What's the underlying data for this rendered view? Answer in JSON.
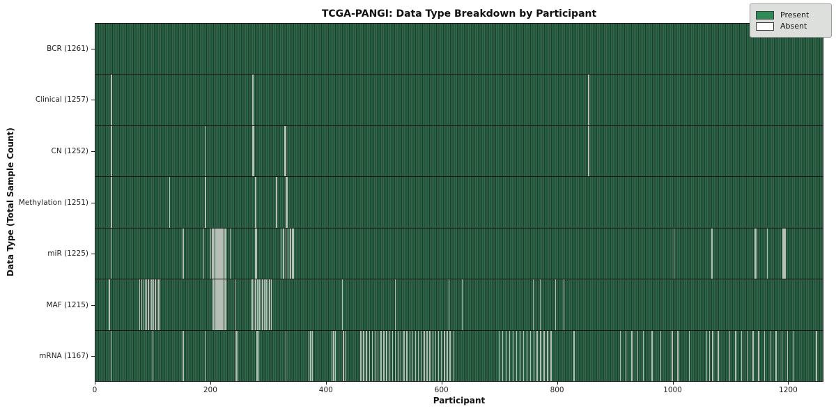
{
  "title": "TCGA-PANGI: Data Type Breakdown by Participant",
  "axes": {
    "xlabel": "Participant",
    "ylabel": "Data Type (Total Sample Count)"
  },
  "legend": {
    "present_label": "Present",
    "absent_label": "Absent"
  },
  "colors": {
    "present_fill": "#2e6b4d",
    "cell_edge": "#1f3c2b",
    "absent_line": "#b5bfb5",
    "legend_present": "#2e8b57",
    "legend_absent": "#ffffff"
  },
  "chart_data": {
    "type": "heatmap",
    "title": "TCGA-PANGI: Data Type Breakdown by Participant",
    "xlabel": "Participant",
    "ylabel": "Data Type (Total Sample Count)",
    "x_range": [
      0,
      1261
    ],
    "x_ticks": [
      0,
      200,
      400,
      600,
      800,
      1000,
      1200
    ],
    "total_participants": 1261,
    "legend_position": "upper right",
    "rows": [
      {
        "label": "BCR (1261)",
        "data_type": "BCR",
        "present_count": 1261,
        "absent_participants": []
      },
      {
        "label": "Clinical (1257)",
        "data_type": "Clinical",
        "present_count": 1257,
        "absent_participants": [
          27,
          28,
          273,
          855
        ]
      },
      {
        "label": "CN (1252)",
        "data_type": "CN",
        "present_count": 1252,
        "absent_participants": [
          27,
          28,
          190,
          273,
          274,
          328,
          329,
          330,
          855
        ]
      },
      {
        "label": "Methylation (1251)",
        "data_type": "Methylation",
        "present_count": 1251,
        "absent_participants": [
          27,
          28,
          129,
          190,
          191,
          277,
          278,
          314,
          331,
          332
        ]
      },
      {
        "label": "miR (1225)",
        "data_type": "miR",
        "present_count": 1225,
        "absent_participants": [
          27,
          152,
          188,
          200,
          202,
          204,
          206,
          208,
          210,
          212,
          214,
          216,
          218,
          220,
          222,
          224,
          226,
          234,
          278,
          279,
          322,
          326,
          330,
          334,
          338,
          342,
          344,
          1003,
          1068,
          1069,
          1144,
          1146,
          1165,
          1192,
          1194,
          1196
        ]
      },
      {
        "label": "MAF (1215)",
        "data_type": "MAF",
        "present_count": 1215,
        "absent_participants": [
          24,
          77,
          80,
          83,
          86,
          89,
          92,
          95,
          98,
          101,
          104,
          107,
          110,
          204,
          206,
          208,
          210,
          212,
          214,
          216,
          218,
          220,
          222,
          224,
          226,
          242,
          272,
          275,
          278,
          281,
          284,
          287,
          290,
          293,
          296,
          299,
          302,
          305,
          428,
          520,
          613,
          636,
          759,
          771,
          798,
          812
        ]
      },
      {
        "label": "mRNA (1167)",
        "data_type": "mRNA",
        "present_count": 1167,
        "absent_participants": [
          27,
          100,
          152,
          190,
          242,
          245,
          280,
          283,
          330,
          370,
          373,
          376,
          410,
          413,
          416,
          430,
          433,
          460,
          465,
          470,
          475,
          480,
          485,
          490,
          495,
          500,
          505,
          510,
          515,
          520,
          525,
          530,
          535,
          540,
          545,
          550,
          555,
          560,
          565,
          570,
          575,
          580,
          585,
          590,
          595,
          600,
          605,
          610,
          615,
          620,
          700,
          706,
          712,
          718,
          724,
          730,
          736,
          742,
          748,
          754,
          760,
          766,
          772,
          778,
          784,
          790,
          830,
          910,
          920,
          930,
          940,
          950,
          965,
          980,
          1000,
          1010,
          1030,
          1060,
          1065,
          1070,
          1080,
          1100,
          1110,
          1120,
          1130,
          1140,
          1150,
          1160,
          1170,
          1180,
          1190,
          1200,
          1210,
          1250
        ]
      }
    ]
  }
}
